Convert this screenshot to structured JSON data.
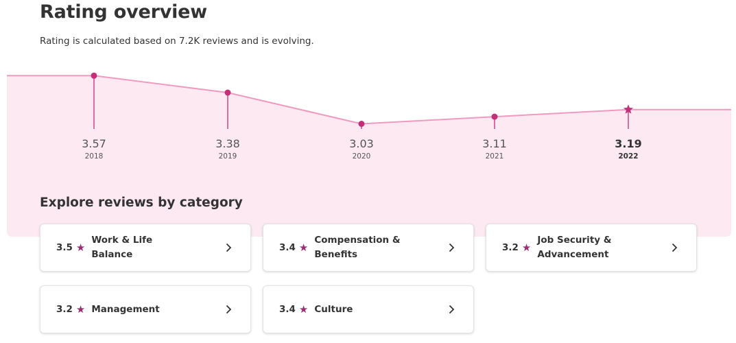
{
  "header": {
    "title": "Rating overview",
    "subtitle": "Rating is calculated based on 7.2K reviews and is evolving."
  },
  "chart_data": {
    "type": "line",
    "x": [
      "2018",
      "2019",
      "2020",
      "2021",
      "2022"
    ],
    "values": [
      3.57,
      3.38,
      3.03,
      3.11,
      3.19
    ],
    "value_labels": [
      "3.57",
      "3.38",
      "3.03",
      "3.11",
      "3.19"
    ],
    "highlighted": "2022",
    "colors": {
      "line": "#f09abf",
      "fill": "#fce9f1",
      "marker": "#c2307a"
    }
  },
  "categories_section": {
    "title": "Explore reviews by category",
    "items": [
      {
        "rating": "3.5",
        "label": "Work & Life Balance"
      },
      {
        "rating": "3.4",
        "label": "Compensation & Benefits"
      },
      {
        "rating": "3.2",
        "label": "Job Security & Advancement"
      },
      {
        "rating": "3.2",
        "label": "Management"
      },
      {
        "rating": "3.4",
        "label": "Culture"
      }
    ],
    "star_icon": "star-icon",
    "chevron_icon": "chevron-right-icon",
    "star_color": "#9b2d73"
  }
}
